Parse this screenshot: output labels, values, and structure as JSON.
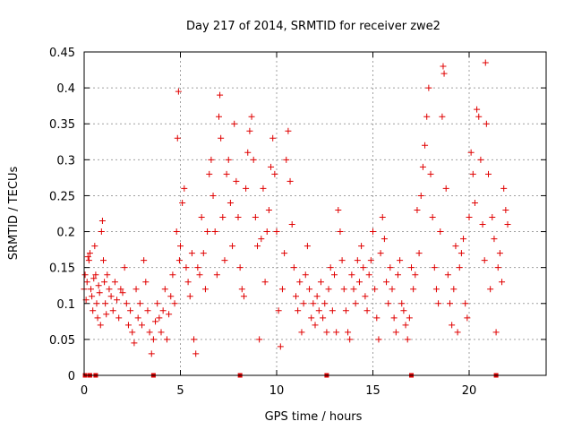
{
  "chart_data": {
    "type": "scatter",
    "title": "Day 217 of 2014, SRMTID for receiver zwe2",
    "xlabel": "GPS time / hours",
    "ylabel": "SRMTID / TECUs",
    "xlim": [
      0,
      24
    ],
    "ylim": [
      0,
      0.45
    ],
    "xticks": [
      0,
      5,
      10,
      15,
      20
    ],
    "xtick_labels": [
      "0",
      "5",
      "10",
      "15",
      "20"
    ],
    "yticks": [
      0,
      0.05,
      0.1,
      0.15,
      0.2,
      0.25,
      0.3,
      0.35,
      0.4,
      0.45
    ],
    "ytick_labels": [
      "0",
      "0.05",
      "0.1",
      "0.15",
      "0.2",
      "0.25",
      "0.3",
      "0.35",
      "0.4",
      "0.45"
    ],
    "grid": true,
    "series_color": "#e00000",
    "zero_markers_x": [
      0.05,
      0.3,
      0.6,
      3.6,
      8.1,
      12.6,
      17.0,
      21.4
    ],
    "series": [
      {
        "name": "SRMTID",
        "marker": "plus",
        "points": [
          [
            0.0,
            0.12
          ],
          [
            0.05,
            0.14
          ],
          [
            0.1,
            0.105
          ],
          [
            0.15,
            0.13
          ],
          [
            0.2,
            0.165
          ],
          [
            0.25,
            0.16
          ],
          [
            0.3,
            0.17
          ],
          [
            0.35,
            0.12
          ],
          [
            0.4,
            0.11
          ],
          [
            0.45,
            0.09
          ],
          [
            0.5,
            0.135
          ],
          [
            0.55,
            0.18
          ],
          [
            0.6,
            0.14
          ],
          [
            0.65,
            0.1
          ],
          [
            0.7,
            0.08
          ],
          [
            0.75,
            0.125
          ],
          [
            0.8,
            0.115
          ],
          [
            0.85,
            0.07
          ],
          [
            0.9,
            0.2
          ],
          [
            0.95,
            0.215
          ],
          [
            1.0,
            0.16
          ],
          [
            1.05,
            0.13
          ],
          [
            1.1,
            0.1
          ],
          [
            1.15,
            0.085
          ],
          [
            1.2,
            0.14
          ],
          [
            1.3,
            0.12
          ],
          [
            1.4,
            0.11
          ],
          [
            1.5,
            0.09
          ],
          [
            1.6,
            0.13
          ],
          [
            1.7,
            0.105
          ],
          [
            1.8,
            0.08
          ],
          [
            1.9,
            0.12
          ],
          [
            2.0,
            0.115
          ],
          [
            2.1,
            0.15
          ],
          [
            2.2,
            0.1
          ],
          [
            2.3,
            0.07
          ],
          [
            2.4,
            0.09
          ],
          [
            2.5,
            0.06
          ],
          [
            2.6,
            0.045
          ],
          [
            2.7,
            0.12
          ],
          [
            2.8,
            0.08
          ],
          [
            2.9,
            0.1
          ],
          [
            3.0,
            0.07
          ],
          [
            3.1,
            0.16
          ],
          [
            3.2,
            0.13
          ],
          [
            3.3,
            0.09
          ],
          [
            3.4,
            0.06
          ],
          [
            3.5,
            0.03
          ],
          [
            3.6,
            0.05
          ],
          [
            3.7,
            0.075
          ],
          [
            3.8,
            0.1
          ],
          [
            3.9,
            0.08
          ],
          [
            4.0,
            0.06
          ],
          [
            4.1,
            0.09
          ],
          [
            4.2,
            0.12
          ],
          [
            4.3,
            0.05
          ],
          [
            4.4,
            0.085
          ],
          [
            4.5,
            0.11
          ],
          [
            4.6,
            0.14
          ],
          [
            4.7,
            0.1
          ],
          [
            4.8,
            0.2
          ],
          [
            4.85,
            0.33
          ],
          [
            4.9,
            0.395
          ],
          [
            4.95,
            0.16
          ],
          [
            5.0,
            0.18
          ],
          [
            5.1,
            0.24
          ],
          [
            5.2,
            0.26
          ],
          [
            5.3,
            0.15
          ],
          [
            5.4,
            0.13
          ],
          [
            5.5,
            0.11
          ],
          [
            5.6,
            0.17
          ],
          [
            5.7,
            0.05
          ],
          [
            5.8,
            0.03
          ],
          [
            5.9,
            0.15
          ],
          [
            6.0,
            0.14
          ],
          [
            6.1,
            0.22
          ],
          [
            6.2,
            0.17
          ],
          [
            6.3,
            0.12
          ],
          [
            6.4,
            0.2
          ],
          [
            6.5,
            0.28
          ],
          [
            6.6,
            0.3
          ],
          [
            6.7,
            0.25
          ],
          [
            6.8,
            0.2
          ],
          [
            6.9,
            0.14
          ],
          [
            7.0,
            0.36
          ],
          [
            7.05,
            0.39
          ],
          [
            7.1,
            0.33
          ],
          [
            7.2,
            0.22
          ],
          [
            7.3,
            0.16
          ],
          [
            7.4,
            0.28
          ],
          [
            7.5,
            0.3
          ],
          [
            7.6,
            0.24
          ],
          [
            7.7,
            0.18
          ],
          [
            7.8,
            0.35
          ],
          [
            7.9,
            0.27
          ],
          [
            8.0,
            0.22
          ],
          [
            8.1,
            0.15
          ],
          [
            8.2,
            0.12
          ],
          [
            8.3,
            0.11
          ],
          [
            8.4,
            0.26
          ],
          [
            8.5,
            0.31
          ],
          [
            8.6,
            0.34
          ],
          [
            8.7,
            0.36
          ],
          [
            8.8,
            0.3
          ],
          [
            8.9,
            0.22
          ],
          [
            9.0,
            0.18
          ],
          [
            9.1,
            0.05
          ],
          [
            9.2,
            0.19
          ],
          [
            9.3,
            0.26
          ],
          [
            9.4,
            0.13
          ],
          [
            9.5,
            0.2
          ],
          [
            9.6,
            0.23
          ],
          [
            9.7,
            0.29
          ],
          [
            9.8,
            0.33
          ],
          [
            9.9,
            0.28
          ],
          [
            10.0,
            0.2
          ],
          [
            10.1,
            0.09
          ],
          [
            10.2,
            0.04
          ],
          [
            10.3,
            0.12
          ],
          [
            10.4,
            0.17
          ],
          [
            10.5,
            0.3
          ],
          [
            10.6,
            0.34
          ],
          [
            10.7,
            0.27
          ],
          [
            10.8,
            0.21
          ],
          [
            10.9,
            0.15
          ],
          [
            11.0,
            0.11
          ],
          [
            11.1,
            0.09
          ],
          [
            11.2,
            0.13
          ],
          [
            11.3,
            0.06
          ],
          [
            11.4,
            0.1
          ],
          [
            11.5,
            0.14
          ],
          [
            11.6,
            0.18
          ],
          [
            11.7,
            0.12
          ],
          [
            11.8,
            0.08
          ],
          [
            11.9,
            0.1
          ],
          [
            12.0,
            0.07
          ],
          [
            12.1,
            0.11
          ],
          [
            12.2,
            0.09
          ],
          [
            12.3,
            0.13
          ],
          [
            12.4,
            0.08
          ],
          [
            12.5,
            0.1
          ],
          [
            12.6,
            0.06
          ],
          [
            12.7,
            0.12
          ],
          [
            12.8,
            0.15
          ],
          [
            12.9,
            0.09
          ],
          [
            13.0,
            0.14
          ],
          [
            13.1,
            0.06
          ],
          [
            13.2,
            0.23
          ],
          [
            13.3,
            0.2
          ],
          [
            13.4,
            0.16
          ],
          [
            13.5,
            0.12
          ],
          [
            13.6,
            0.09
          ],
          [
            13.7,
            0.06
          ],
          [
            13.8,
            0.05
          ],
          [
            13.9,
            0.14
          ],
          [
            14.0,
            0.12
          ],
          [
            14.1,
            0.1
          ],
          [
            14.2,
            0.16
          ],
          [
            14.3,
            0.13
          ],
          [
            14.4,
            0.18
          ],
          [
            14.5,
            0.15
          ],
          [
            14.6,
            0.11
          ],
          [
            14.7,
            0.09
          ],
          [
            14.8,
            0.14
          ],
          [
            14.9,
            0.16
          ],
          [
            15.0,
            0.2
          ],
          [
            15.1,
            0.12
          ],
          [
            15.2,
            0.08
          ],
          [
            15.3,
            0.05
          ],
          [
            15.4,
            0.17
          ],
          [
            15.5,
            0.22
          ],
          [
            15.6,
            0.19
          ],
          [
            15.7,
            0.13
          ],
          [
            15.8,
            0.1
          ],
          [
            15.9,
            0.15
          ],
          [
            16.0,
            0.12
          ],
          [
            16.1,
            0.08
          ],
          [
            16.2,
            0.06
          ],
          [
            16.3,
            0.14
          ],
          [
            16.4,
            0.16
          ],
          [
            16.5,
            0.1
          ],
          [
            16.6,
            0.09
          ],
          [
            16.7,
            0.07
          ],
          [
            16.8,
            0.05
          ],
          [
            16.9,
            0.08
          ],
          [
            17.0,
            0.15
          ],
          [
            17.1,
            0.12
          ],
          [
            17.2,
            0.14
          ],
          [
            17.3,
            0.23
          ],
          [
            17.4,
            0.17
          ],
          [
            17.5,
            0.25
          ],
          [
            17.6,
            0.29
          ],
          [
            17.7,
            0.32
          ],
          [
            17.8,
            0.36
          ],
          [
            17.9,
            0.4
          ],
          [
            18.0,
            0.28
          ],
          [
            18.1,
            0.22
          ],
          [
            18.2,
            0.15
          ],
          [
            18.3,
            0.12
          ],
          [
            18.4,
            0.1
          ],
          [
            18.5,
            0.2
          ],
          [
            18.6,
            0.36
          ],
          [
            18.65,
            0.43
          ],
          [
            18.7,
            0.42
          ],
          [
            18.8,
            0.26
          ],
          [
            18.9,
            0.14
          ],
          [
            19.0,
            0.1
          ],
          [
            19.1,
            0.07
          ],
          [
            19.2,
            0.12
          ],
          [
            19.3,
            0.18
          ],
          [
            19.4,
            0.06
          ],
          [
            19.5,
            0.15
          ],
          [
            19.6,
            0.17
          ],
          [
            19.7,
            0.19
          ],
          [
            19.8,
            0.1
          ],
          [
            19.9,
            0.08
          ],
          [
            20.0,
            0.22
          ],
          [
            20.1,
            0.31
          ],
          [
            20.2,
            0.28
          ],
          [
            20.3,
            0.24
          ],
          [
            20.4,
            0.37
          ],
          [
            20.5,
            0.36
          ],
          [
            20.6,
            0.3
          ],
          [
            20.7,
            0.21
          ],
          [
            20.8,
            0.16
          ],
          [
            20.85,
            0.435
          ],
          [
            20.9,
            0.35
          ],
          [
            21.0,
            0.28
          ],
          [
            21.1,
            0.12
          ],
          [
            21.2,
            0.22
          ],
          [
            21.3,
            0.19
          ],
          [
            21.4,
            0.06
          ],
          [
            21.5,
            0.15
          ],
          [
            21.6,
            0.17
          ],
          [
            21.7,
            0.13
          ],
          [
            21.8,
            0.26
          ],
          [
            21.9,
            0.23
          ],
          [
            22.0,
            0.21
          ]
        ]
      }
    ]
  }
}
